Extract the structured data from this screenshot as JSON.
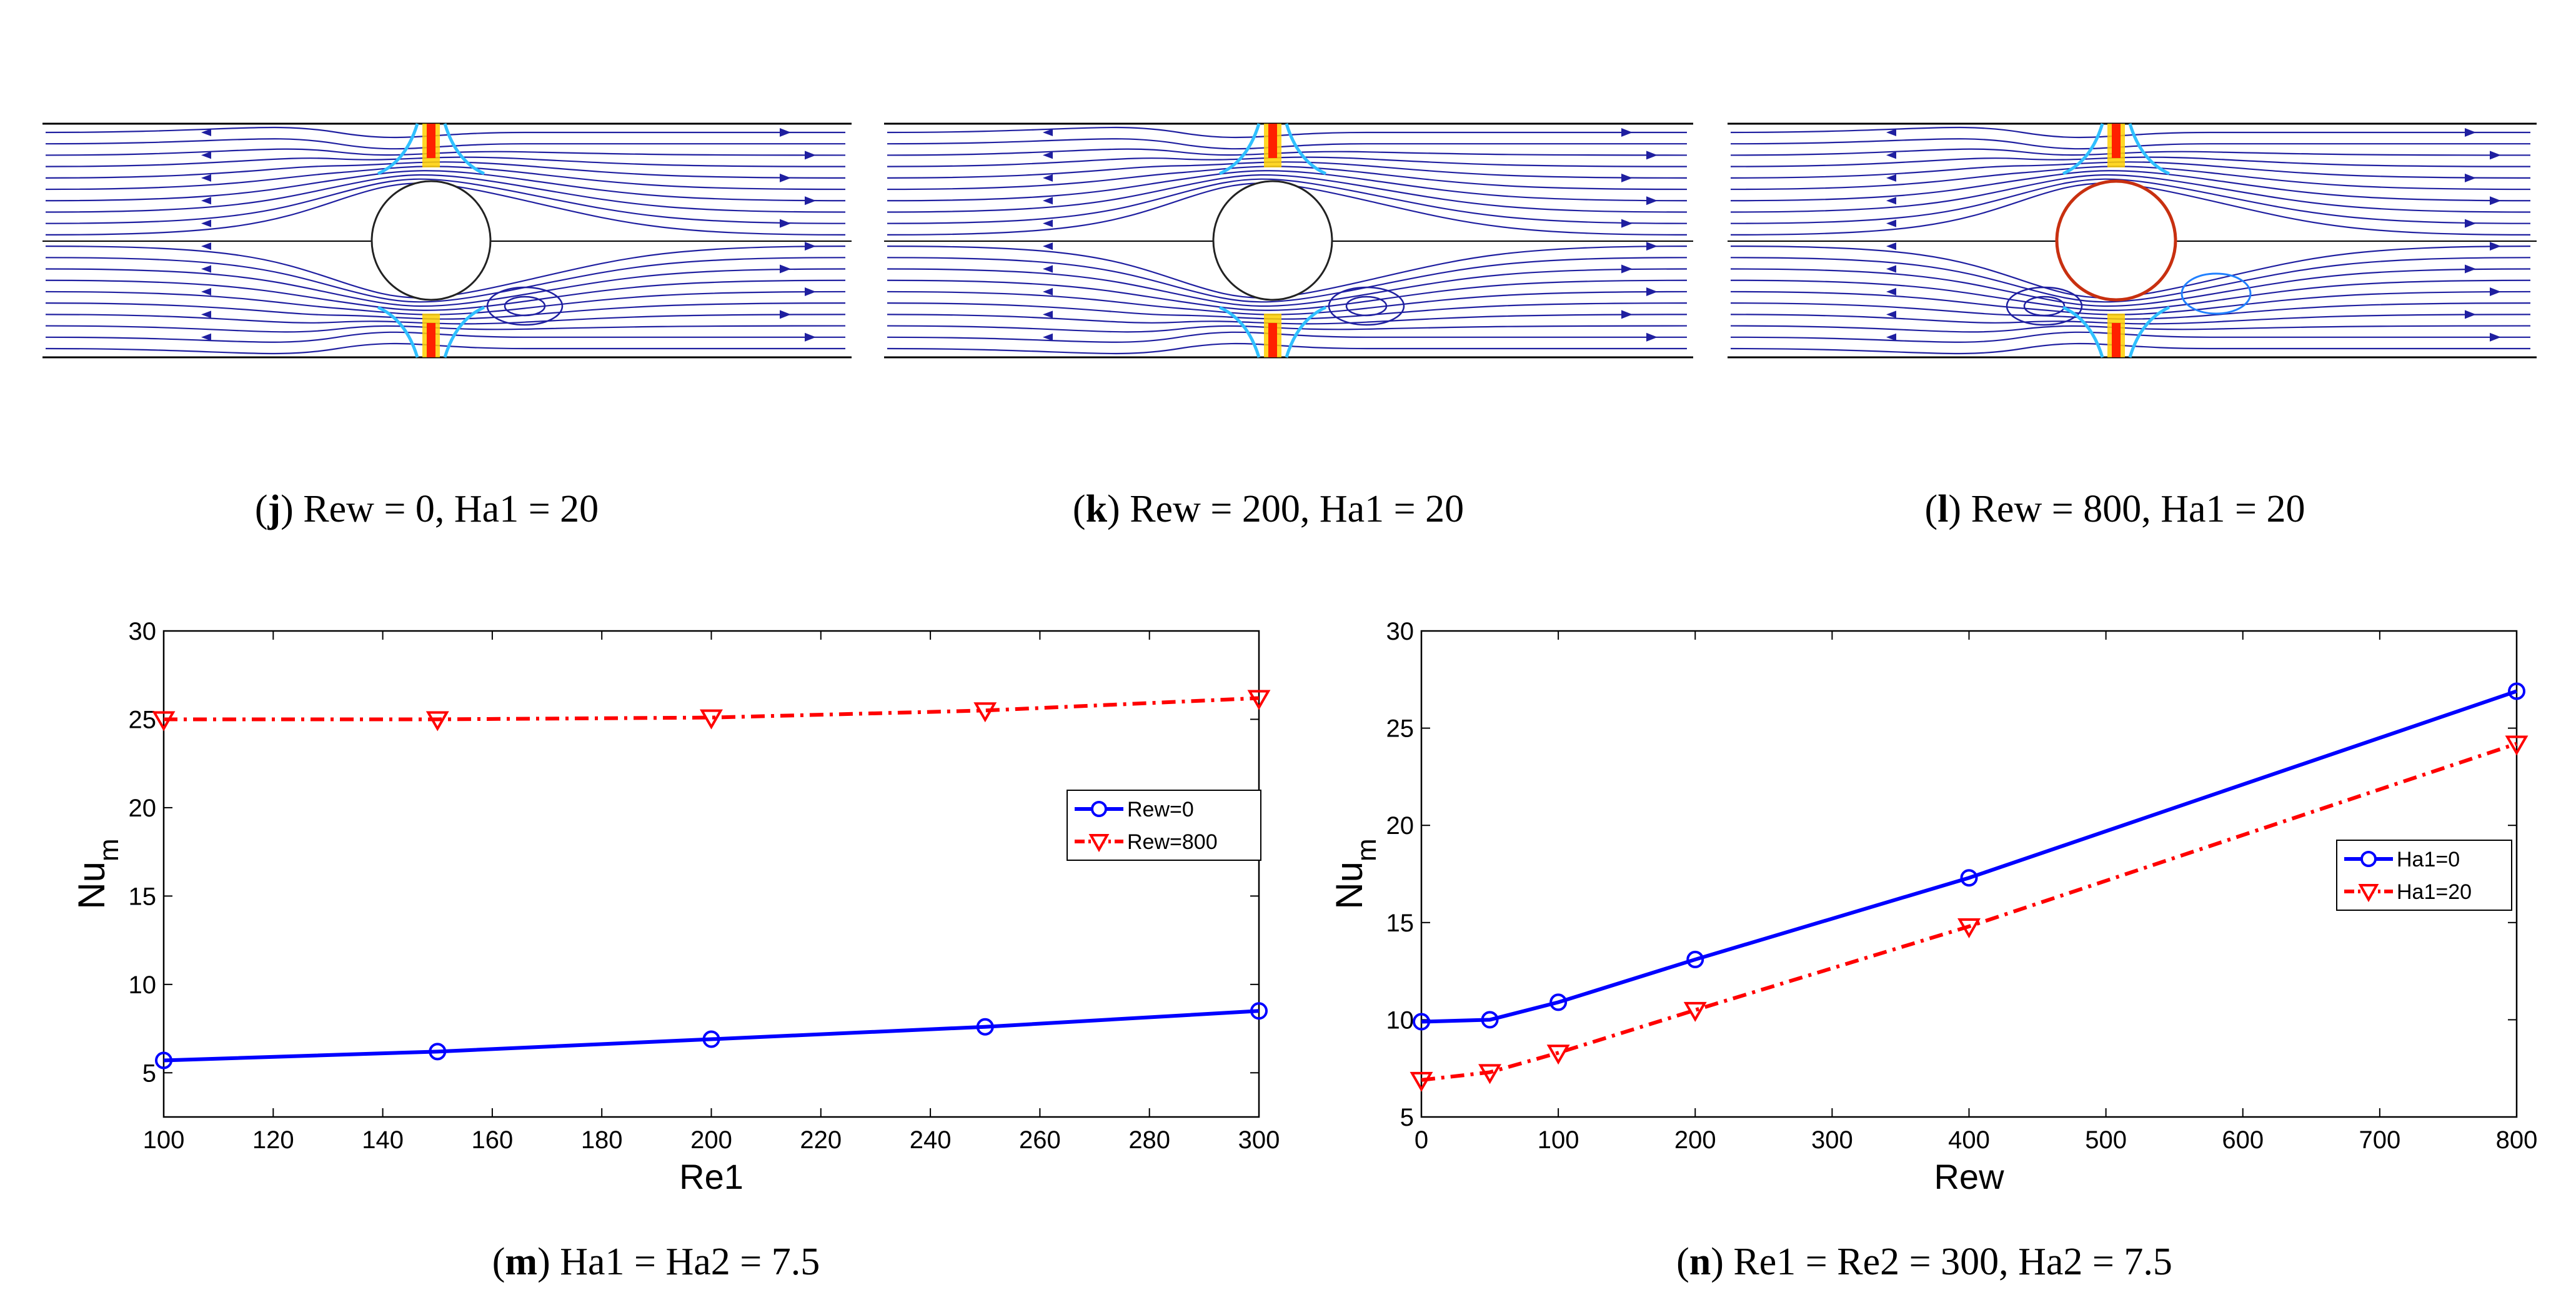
{
  "streamline_panels": [
    {
      "letter": "j",
      "caption": "Rew = 0, Ha1 = 20"
    },
    {
      "letter": "k",
      "caption": "Rew = 200, Ha1 = 20"
    },
    {
      "letter": "l",
      "caption": "Rew = 800, Ha1 = 20"
    }
  ],
  "colors": {
    "streamline": "#1f1fa0",
    "series_blue": "#0000ff",
    "series_red": "#ff0000",
    "hot": "#ff2000",
    "warm": "#ffd000",
    "cool": "#30c0ff"
  },
  "chart_data": [
    {
      "type": "line",
      "panel_letter": "m",
      "caption": "Ha1 = Ha2 = 7.5",
      "xlabel": "Re1",
      "ylabel": "Nu",
      "ylabel_sub": "m",
      "xlim": [
        100,
        300
      ],
      "ylim": [
        2.5,
        30
      ],
      "xticks": [
        100,
        120,
        140,
        160,
        180,
        200,
        220,
        240,
        260,
        280,
        300
      ],
      "yticks": [
        5,
        10,
        15,
        20,
        25,
        30
      ],
      "grid": false,
      "legend_position": "right",
      "series": [
        {
          "name": "Rew=0",
          "color": "#0000ff",
          "marker": "circle",
          "style": "solid",
          "x": [
            100,
            150,
            200,
            250,
            300
          ],
          "y": [
            5.7,
            6.2,
            6.9,
            7.6,
            8.5
          ]
        },
        {
          "name": "Rew=800",
          "color": "#ff0000",
          "marker": "triangle-down",
          "style": "dashdot",
          "x": [
            100,
            150,
            200,
            250,
            300
          ],
          "y": [
            25.0,
            25.0,
            25.1,
            25.5,
            26.2
          ]
        }
      ]
    },
    {
      "type": "line",
      "panel_letter": "n",
      "caption": "Re1 = Re2 = 300, Ha2 = 7.5",
      "xlabel": "Rew",
      "ylabel": "Nu",
      "ylabel_sub": "m",
      "xlim": [
        0,
        800
      ],
      "ylim": [
        5,
        30
      ],
      "xticks": [
        0,
        100,
        200,
        300,
        400,
        500,
        600,
        700,
        800
      ],
      "yticks": [
        5,
        10,
        15,
        20,
        25,
        30
      ],
      "grid": false,
      "legend_position": "right",
      "series": [
        {
          "name": "Ha1=0",
          "color": "#0000ff",
          "marker": "circle",
          "style": "solid",
          "x": [
            0,
            50,
            100,
            200,
            400,
            800
          ],
          "y": [
            9.9,
            10.0,
            10.9,
            13.1,
            17.3,
            26.9
          ]
        },
        {
          "name": "Ha1=20",
          "color": "#ff0000",
          "marker": "triangle-down",
          "style": "dashdot",
          "x": [
            0,
            50,
            100,
            200,
            400,
            800
          ],
          "y": [
            6.9,
            7.3,
            8.3,
            10.5,
            14.8,
            24.2
          ]
        }
      ]
    }
  ]
}
